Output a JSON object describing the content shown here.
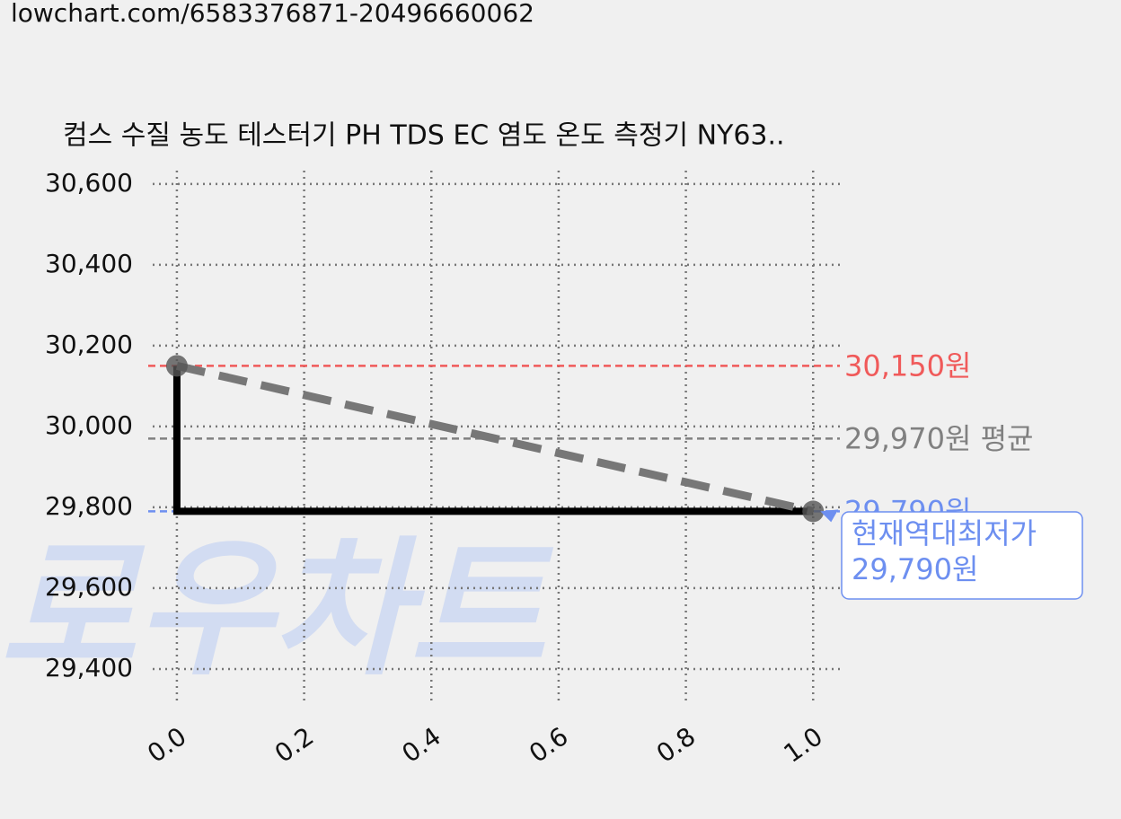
{
  "url": "lowchart.com/6583376871-20496660062",
  "chart_data": {
    "type": "line",
    "title": "컴스 수질 농도 테스터기 PH TDS EC 염도 온도 측정기 NY63..",
    "watermark": "로우차트",
    "xlim": [
      -0.038,
      1.042
    ],
    "ylim": [
      29311,
      30633
    ],
    "xticks": [
      {
        "value": 0,
        "label": "0.0"
      },
      0.2,
      0.4,
      0.6,
      0.8,
      {
        "value": 1,
        "label": "1.0"
      }
    ],
    "yticks": [
      {
        "value": 29400,
        "label": "29,400"
      },
      {
        "value": 29600,
        "label": "29,600"
      },
      {
        "value": 29800,
        "label": "29,800"
      },
      {
        "value": 30000,
        "label": "30,000"
      },
      {
        "value": 30200,
        "label": "30,200"
      },
      {
        "value": 30400,
        "label": "30,400"
      },
      {
        "value": 30600,
        "label": "30,600"
      }
    ],
    "grid": true,
    "series": [
      {
        "style": "step",
        "color": "#000000",
        "x": [
          0,
          0,
          1
        ],
        "values": [
          30150,
          29790,
          29790
        ]
      },
      {
        "style": "dashed",
        "color": "#777777",
        "markers": true,
        "x": [
          0,
          1
        ],
        "values": [
          30150,
          29790
        ]
      }
    ],
    "hlines": [
      {
        "value": 30150,
        "label": "30,150원",
        "color": "#f05a5a"
      },
      {
        "value": 29970,
        "label": "29,970원 평균",
        "color": "#808080"
      },
      {
        "value": 29790,
        "label": "29,790원",
        "color": "#6d8ff0"
      }
    ],
    "annotation": {
      "x": 1,
      "value": 29790,
      "lines": [
        "현재역대최저가",
        "29,790원"
      ],
      "color": "#6d8ff0"
    }
  }
}
